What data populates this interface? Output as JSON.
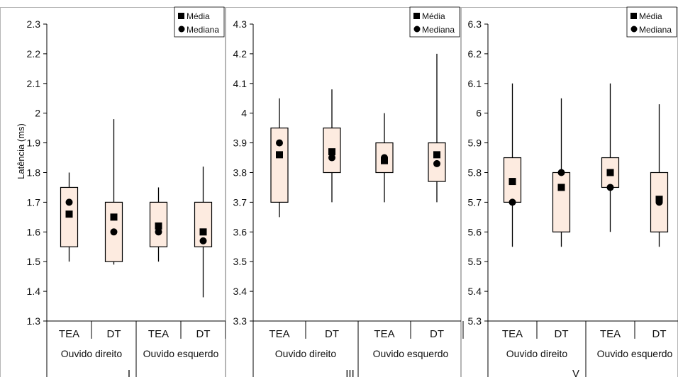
{
  "chart_data": [
    {
      "type": "boxplot",
      "panel_label": "I",
      "ylabel": "Latência (ms)",
      "ylim": [
        1.3,
        2.3
      ],
      "yticks": [
        "2.3",
        "2.2",
        "2.1",
        "2",
        "1.9",
        "1.8",
        "1.7",
        "1.6",
        "1.5",
        "1.4",
        "1.3"
      ],
      "categories": [
        "TEA",
        "DT",
        "TEA",
        "DT"
      ],
      "groups": [
        "Ouvido direito",
        "Ouvido esquerdo"
      ],
      "legend": {
        "mean_label": "Média",
        "median_label": "Mediana",
        "position": "top-right"
      },
      "boxes": [
        {
          "min": 1.5,
          "q1": 1.55,
          "q3": 1.75,
          "max": 1.8,
          "mean": 1.66,
          "median": 1.7
        },
        {
          "min": 1.49,
          "q1": 1.5,
          "q3": 1.7,
          "max": 1.98,
          "mean": 1.65,
          "median": 1.6
        },
        {
          "min": 1.5,
          "q1": 1.55,
          "q3": 1.7,
          "max": 1.75,
          "mean": 1.62,
          "median": 1.6
        },
        {
          "min": 1.38,
          "q1": 1.55,
          "q3": 1.7,
          "max": 1.82,
          "mean": 1.6,
          "median": 1.57
        }
      ]
    },
    {
      "type": "boxplot",
      "panel_label": "III",
      "ylabel": "",
      "ylim": [
        3.3,
        4.3
      ],
      "yticks": [
        "4.3",
        "4.2",
        "4.1",
        "4",
        "3.9",
        "3.8",
        "3.7",
        "3.6",
        "3.5",
        "3.4",
        "3.3"
      ],
      "categories": [
        "TEA",
        "DT",
        "TEA",
        "DT"
      ],
      "groups": [
        "Ouvido direito",
        "Ouvido esquerdo"
      ],
      "legend": {
        "mean_label": "Média",
        "median_label": "Mediana",
        "position": "top-right"
      },
      "boxes": [
        {
          "min": 3.65,
          "q1": 3.7,
          "q3": 3.95,
          "max": 4.05,
          "mean": 3.86,
          "median": 3.9
        },
        {
          "min": 3.7,
          "q1": 3.8,
          "q3": 3.95,
          "max": 4.08,
          "mean": 3.87,
          "median": 3.85
        },
        {
          "min": 3.7,
          "q1": 3.8,
          "q3": 3.9,
          "max": 4.0,
          "mean": 3.84,
          "median": 3.85
        },
        {
          "min": 3.7,
          "q1": 3.77,
          "q3": 3.9,
          "max": 4.2,
          "mean": 3.86,
          "median": 3.83
        }
      ]
    },
    {
      "type": "boxplot",
      "panel_label": "V",
      "ylabel": "",
      "ylim": [
        5.3,
        6.3
      ],
      "yticks": [
        "6.3",
        "6.2",
        "6.1",
        "6",
        "5.9",
        "5.8",
        "5.7",
        "5.6",
        "5.5",
        "5.4",
        "5.3"
      ],
      "categories": [
        "TEA",
        "DT",
        "TEA",
        "DT"
      ],
      "groups": [
        "Ouvido direito",
        "Ouvido esquerdo"
      ],
      "legend": {
        "mean_label": "Média",
        "median_label": "Mediana",
        "position": "top-right"
      },
      "boxes": [
        {
          "min": 5.55,
          "q1": 5.7,
          "q3": 5.85,
          "max": 6.1,
          "mean": 5.77,
          "median": 5.7
        },
        {
          "min": 5.55,
          "q1": 5.6,
          "q3": 5.8,
          "max": 6.05,
          "mean": 5.75,
          "median": 5.8
        },
        {
          "min": 5.6,
          "q1": 5.75,
          "q3": 5.85,
          "max": 6.1,
          "mean": 5.8,
          "median": 5.75
        },
        {
          "min": 5.55,
          "q1": 5.6,
          "q3": 5.8,
          "max": 6.03,
          "mean": 5.71,
          "median": 5.7
        }
      ]
    }
  ],
  "style": {
    "box_fill": "#fdebe0",
    "stroke": "#000000",
    "frame": "#b5b5b5"
  }
}
